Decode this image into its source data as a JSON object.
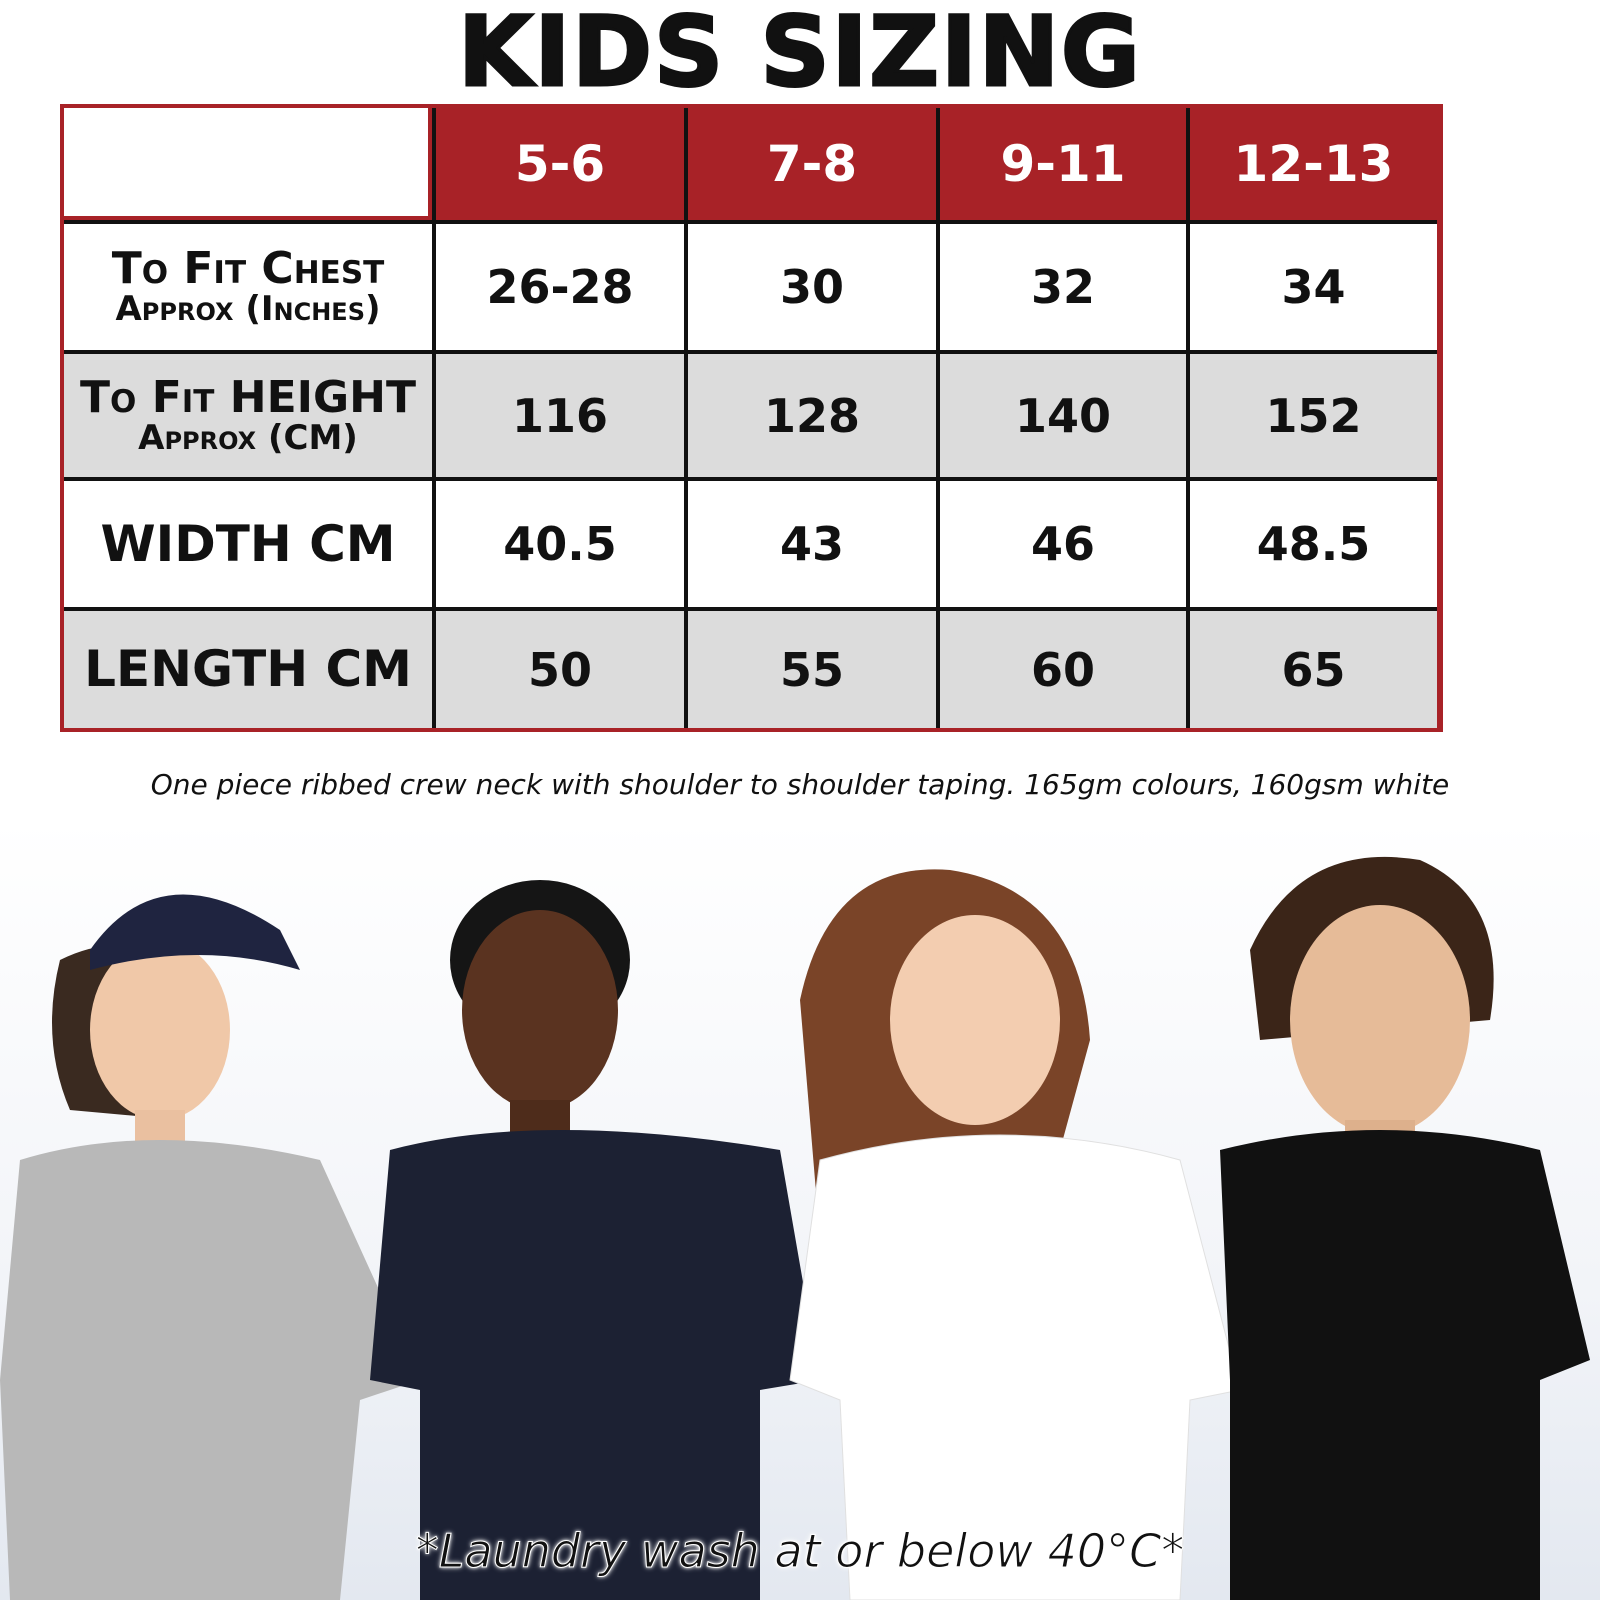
{
  "title": "KIDS SIZING",
  "table": {
    "columns": [
      "5-6",
      "7-8",
      "9-11",
      "12-13"
    ],
    "rows": [
      {
        "label_line1": "To Fit Chest",
        "label_line2": "Approx (Inches)",
        "values": [
          "26-28",
          "30",
          "32",
          "34"
        ]
      },
      {
        "label_line1": "To Fit HEIGHT",
        "label_line2": "Approx (CM)",
        "values": [
          "116",
          "128",
          "140",
          "152"
        ]
      },
      {
        "label_line1": "WIDTH CM",
        "label_line2": "",
        "values": [
          "40.5",
          "43",
          "46",
          "48.5"
        ]
      },
      {
        "label_line1": "LENGTH CM",
        "label_line2": "",
        "values": [
          "50",
          "55",
          "60",
          "65"
        ]
      }
    ],
    "colors": {
      "header": "#a82227",
      "alt_row": "#dcdcdc"
    }
  },
  "description": "One piece ribbed crew neck with shoulder to shoulder taping. 165gm colours, 160gsm white",
  "photo": {
    "shirt_colors": [
      "#b8b8b8",
      "#1c2133",
      "#ffffff",
      "#111111"
    ]
  },
  "care_note": "*Laundry wash at or below 40°C*"
}
